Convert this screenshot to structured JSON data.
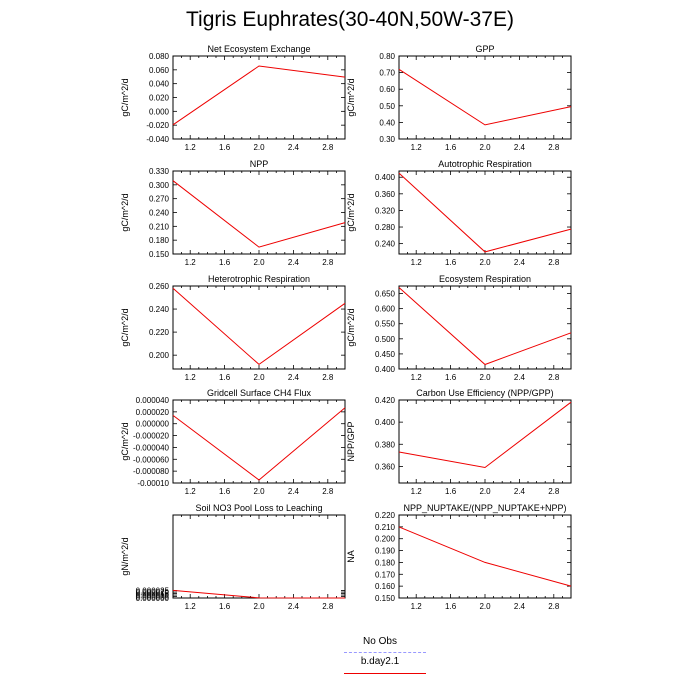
{
  "page": {
    "title": "Tigris Euphrates(30-40N,50W-37E)"
  },
  "legend": {
    "items": [
      {
        "label": "No Obs",
        "color": "#9999ff",
        "dash": true
      },
      {
        "label": "b.day2.1",
        "color": "#ee0000",
        "dash": false
      }
    ]
  },
  "chart_data": [
    {
      "type": "line",
      "title": "Net Ecosystem Exchange",
      "ylabel": "gC/m^2/d",
      "x": [
        1.0,
        2.0,
        3.0
      ],
      "xlim": [
        1.0,
        3.0
      ],
      "xticks": [
        "1.2",
        "1.6",
        "2.0",
        "2.4",
        "2.8"
      ],
      "ylim": [
        -0.04,
        0.08
      ],
      "yticks": [
        "-0.040",
        "-0.020",
        "0.000",
        "0.020",
        "0.040",
        "0.060",
        "0.080"
      ],
      "series": [
        {
          "name": "b.day2.1",
          "color": "#ee0000",
          "values": [
            -0.0195,
            0.0655,
            0.0495
          ]
        }
      ]
    },
    {
      "type": "line",
      "title": "GPP",
      "ylabel": "gC/m^2/d",
      "x": [
        1.0,
        2.0,
        3.0
      ],
      "xlim": [
        1.0,
        3.0
      ],
      "xticks": [
        "1.2",
        "1.6",
        "2.0",
        "2.4",
        "2.8"
      ],
      "ylim": [
        0.3,
        0.8
      ],
      "yticks": [
        "0.30",
        "0.40",
        "0.50",
        "0.60",
        "0.70",
        "0.80"
      ],
      "series": [
        {
          "name": "b.day2.1",
          "color": "#ee0000",
          "values": [
            0.72,
            0.385,
            0.495
          ]
        }
      ]
    },
    {
      "type": "line",
      "title": "NPP",
      "ylabel": "gC/m^2/d",
      "x": [
        1.0,
        2.0,
        3.0
      ],
      "xlim": [
        1.0,
        3.0
      ],
      "xticks": [
        "1.2",
        "1.6",
        "2.0",
        "2.4",
        "2.8"
      ],
      "ylim": [
        0.15,
        0.33
      ],
      "yticks": [
        "0.150",
        "0.180",
        "0.210",
        "0.240",
        "0.270",
        "0.300",
        "0.330"
      ],
      "series": [
        {
          "name": "b.day2.1",
          "color": "#ee0000",
          "values": [
            0.309,
            0.165,
            0.218
          ]
        }
      ]
    },
    {
      "type": "line",
      "title": "Autotrophic Respiration",
      "ylabel": "gC/m^2/d",
      "x": [
        1.0,
        2.0,
        3.0
      ],
      "xlim": [
        1.0,
        3.0
      ],
      "xticks": [
        "1.2",
        "1.6",
        "2.0",
        "2.4",
        "2.8"
      ],
      "ylim": [
        0.215,
        0.415
      ],
      "yticks": [
        "0.240",
        "0.280",
        "0.320",
        "0.360",
        "0.400"
      ],
      "series": [
        {
          "name": "b.day2.1",
          "color": "#ee0000",
          "values": [
            0.41,
            0.22,
            0.275
          ]
        }
      ]
    },
    {
      "type": "line",
      "title": "Heterotrophic Respiration",
      "ylabel": "gC/m^2/d",
      "x": [
        1.0,
        2.0,
        3.0
      ],
      "xlim": [
        1.0,
        3.0
      ],
      "xticks": [
        "1.2",
        "1.6",
        "2.0",
        "2.4",
        "2.8"
      ],
      "ylim": [
        0.188,
        0.26
      ],
      "yticks": [
        "0.200",
        "0.220",
        "0.240",
        "0.260"
      ],
      "series": [
        {
          "name": "b.day2.1",
          "color": "#ee0000",
          "values": [
            0.258,
            0.192,
            0.245
          ]
        }
      ]
    },
    {
      "type": "line",
      "title": "Ecosystem Respiration",
      "ylabel": "gC/m^2/d",
      "x": [
        1.0,
        2.0,
        3.0
      ],
      "xlim": [
        1.0,
        3.0
      ],
      "xticks": [
        "1.2",
        "1.6",
        "2.0",
        "2.4",
        "2.8"
      ],
      "ylim": [
        0.4,
        0.675
      ],
      "yticks": [
        "0.400",
        "0.450",
        "0.500",
        "0.550",
        "0.600",
        "0.650"
      ],
      "series": [
        {
          "name": "b.day2.1",
          "color": "#ee0000",
          "values": [
            0.67,
            0.415,
            0.52
          ]
        }
      ]
    },
    {
      "type": "line",
      "title": "Gridcell Surface CH4 Flux",
      "ylabel": "gC/m^2/d",
      "x": [
        1.0,
        2.0,
        3.0
      ],
      "xlim": [
        1.0,
        3.0
      ],
      "xticks": [
        "1.2",
        "1.6",
        "2.0",
        "2.4",
        "2.8"
      ],
      "ylim": [
        -0.0001,
        4e-05
      ],
      "yticks": [
        "-0.00010",
        "-0.000080",
        "-0.000060",
        "-0.000040",
        "-0.000020",
        "0.000000",
        "0.000020",
        "0.000040"
      ],
      "series": [
        {
          "name": "b.day2.1",
          "color": "#ee0000",
          "values": [
            1.4e-05,
            -9.5e-05,
            2.7e-05
          ]
        }
      ]
    },
    {
      "type": "line",
      "title": "Carbon Use Efficiency (NPP/GPP)",
      "ylabel": "NPP/GPP",
      "x": [
        1.0,
        2.0,
        3.0
      ],
      "xlim": [
        1.0,
        3.0
      ],
      "xticks": [
        "1.2",
        "1.6",
        "2.0",
        "2.4",
        "2.8"
      ],
      "ylim": [
        0.345,
        0.42
      ],
      "yticks": [
        "0.360",
        "0.380",
        "0.400",
        "0.420"
      ],
      "series": [
        {
          "name": "b.day2.1",
          "color": "#ee0000",
          "values": [
            0.373,
            0.359,
            0.418
          ]
        }
      ]
    },
    {
      "type": "line",
      "title": "Soil NO3 Pool Loss to Leaching",
      "ylabel": "gN/m^2/d",
      "x": [
        1.0,
        2.0,
        3.0
      ],
      "xlim": [
        1.0,
        3.0
      ],
      "xticks": [
        "1.2",
        "1.6",
        "2.0",
        "2.4",
        "2.8"
      ],
      "ylim": [
        0.0,
        0.00028
      ],
      "yticks": [
        "0.000000",
        "0.000005",
        "0.000010",
        "0.000015",
        "0.000020",
        "0.000025"
      ],
      "series": [
        {
          "name": "b.day2.1",
          "color": "#ee0000",
          "values": [
            2.55e-05,
            3e-07,
            1e-07
          ]
        }
      ]
    },
    {
      "type": "line",
      "title": "NPP_NUPTAKE/(NPP_NUPTAKE+NPP)",
      "ylabel": "NA",
      "x": [
        1.0,
        2.0,
        3.0
      ],
      "xlim": [
        1.0,
        3.0
      ],
      "xticks": [
        "1.2",
        "1.6",
        "2.0",
        "2.4",
        "2.8"
      ],
      "ylim": [
        0.15,
        0.22
      ],
      "yticks": [
        "0.150",
        "0.160",
        "0.170",
        "0.180",
        "0.190",
        "0.200",
        "0.210",
        "0.220"
      ],
      "series": [
        {
          "name": "b.day2.1",
          "color": "#ee0000",
          "values": [
            0.21,
            0.18,
            0.16
          ]
        }
      ]
    }
  ]
}
